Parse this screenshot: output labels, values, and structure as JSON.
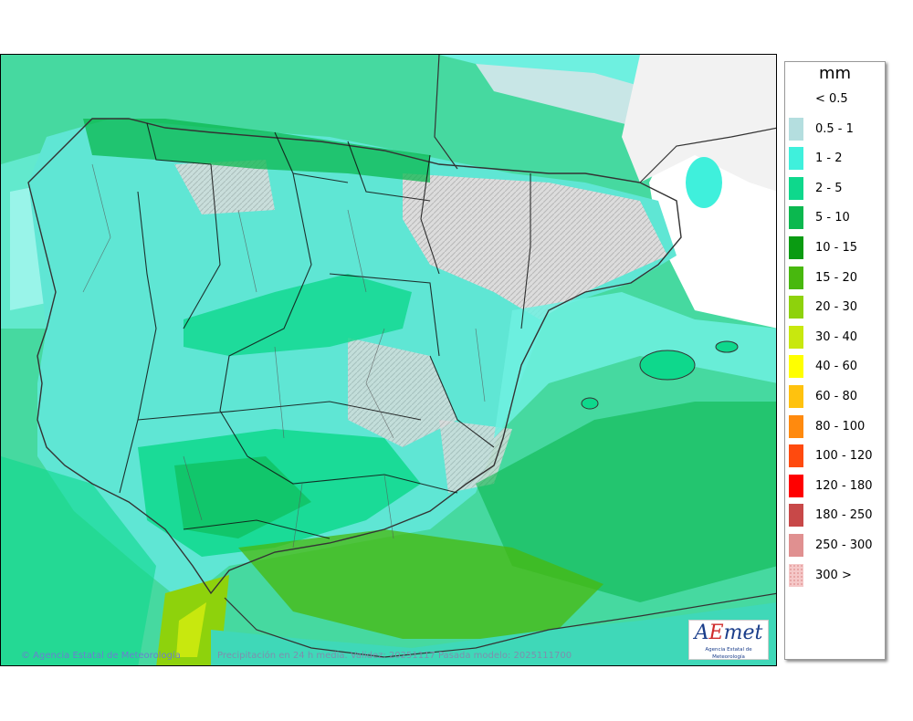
{
  "map": {
    "credit": "© Agencia Estatal de Meteorología",
    "caption": "Precipitación en 24 h media. Validez: 20251117 Pasada modelo: 2025111700",
    "logo": {
      "word_a": "A",
      "word_e": "E",
      "word_rest": "met",
      "subtitle": "Agencia Estatal de Meteorología"
    }
  },
  "legend": {
    "title": "mm",
    "items": [
      {
        "label": "< 0.5",
        "color": "#ffffff"
      },
      {
        "label": "0.5 - 1",
        "color": "#b4dedf"
      },
      {
        "label": "1 - 2",
        "color": "#3ff0dc"
      },
      {
        "label": "2 - 5",
        "color": "#0ed88c"
      },
      {
        "label": "5 - 10",
        "color": "#0bb84f"
      },
      {
        "label": "10 - 15",
        "color": "#0a9b12"
      },
      {
        "label": "15 - 20",
        "color": "#48b80e"
      },
      {
        "label": "20 - 30",
        "color": "#8ed20c"
      },
      {
        "label": "30 - 40",
        "color": "#c8e80e"
      },
      {
        "label": "40 - 60",
        "color": "#ffff00"
      },
      {
        "label": "60 - 80",
        "color": "#ffc20e"
      },
      {
        "label": "80 - 100",
        "color": "#ff8a0e"
      },
      {
        "label": "100 - 120",
        "color": "#ff4a0e"
      },
      {
        "label": "120 - 180",
        "color": "#ff0000"
      },
      {
        "label": "180 - 250",
        "color": "#c84848"
      },
      {
        "label": "250 - 300",
        "color": "#e09090"
      },
      {
        "label": "300 >",
        "color": "#f5c8c8"
      }
    ]
  }
}
